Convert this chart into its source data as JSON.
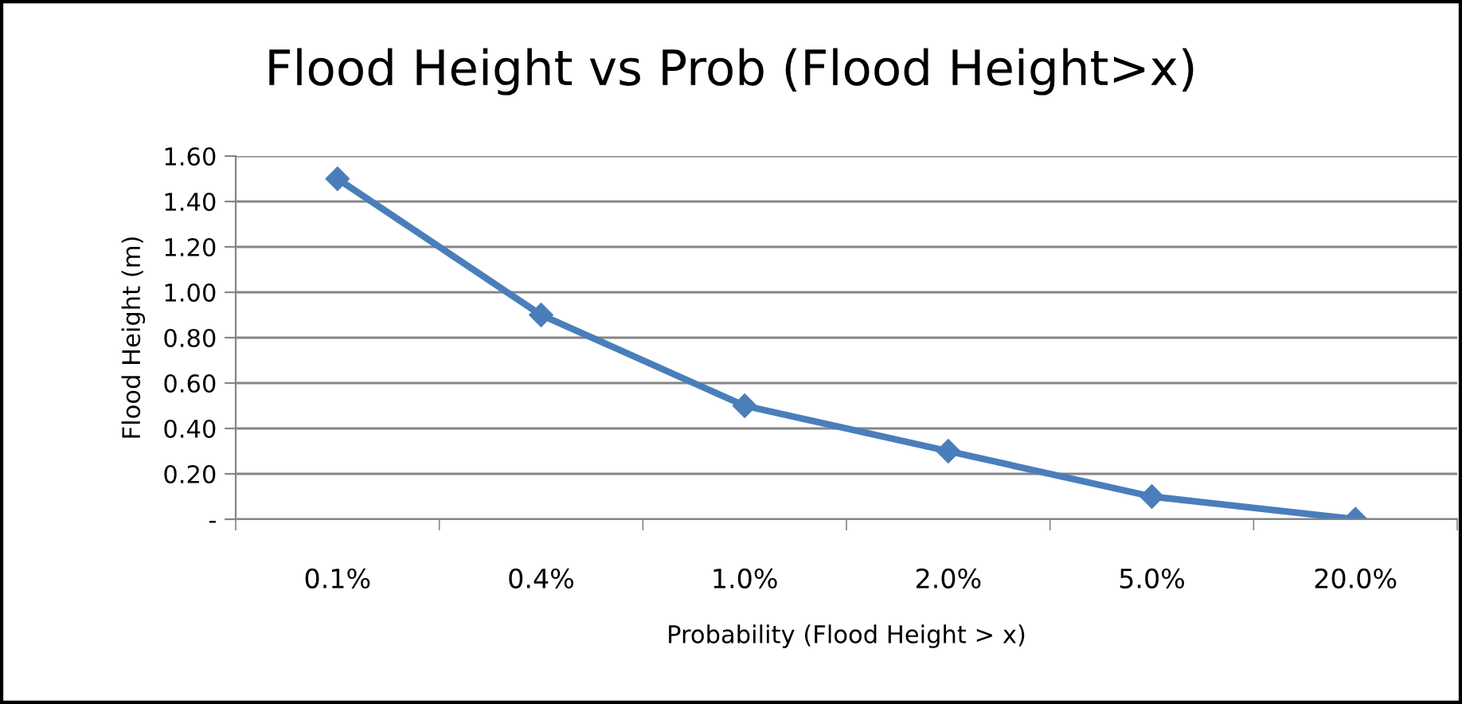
{
  "chart_data": {
    "type": "line",
    "title": "Flood Height vs Prob (Flood Height>x)",
    "xlabel": "Probability (Flood Height > x)",
    "ylabel": "Flood Height (m)",
    "categories": [
      "0.1%",
      "0.4%",
      "1.0%",
      "2.0%",
      "5.0%",
      "20.0%"
    ],
    "series": [
      {
        "color": "#4a7ebb",
        "values": [
          1.5,
          0.9,
          0.5,
          0.3,
          0.1,
          0.0
        ]
      }
    ],
    "ylim": [
      0,
      1.6
    ],
    "yticks": [
      {
        "value": 0,
        "label": "-"
      },
      {
        "value": 0.2,
        "label": "0.20"
      },
      {
        "value": 0.4,
        "label": "0.40"
      },
      {
        "value": 0.6,
        "label": "0.60"
      },
      {
        "value": 0.8,
        "label": "0.80"
      },
      {
        "value": 1.0,
        "label": "1.00"
      },
      {
        "value": 1.2,
        "label": "1.20"
      },
      {
        "value": 1.4,
        "label": "1.40"
      },
      {
        "value": 1.6,
        "label": "1.60"
      }
    ],
    "grid": "y",
    "marker": "diamond",
    "line_style": "solid"
  }
}
